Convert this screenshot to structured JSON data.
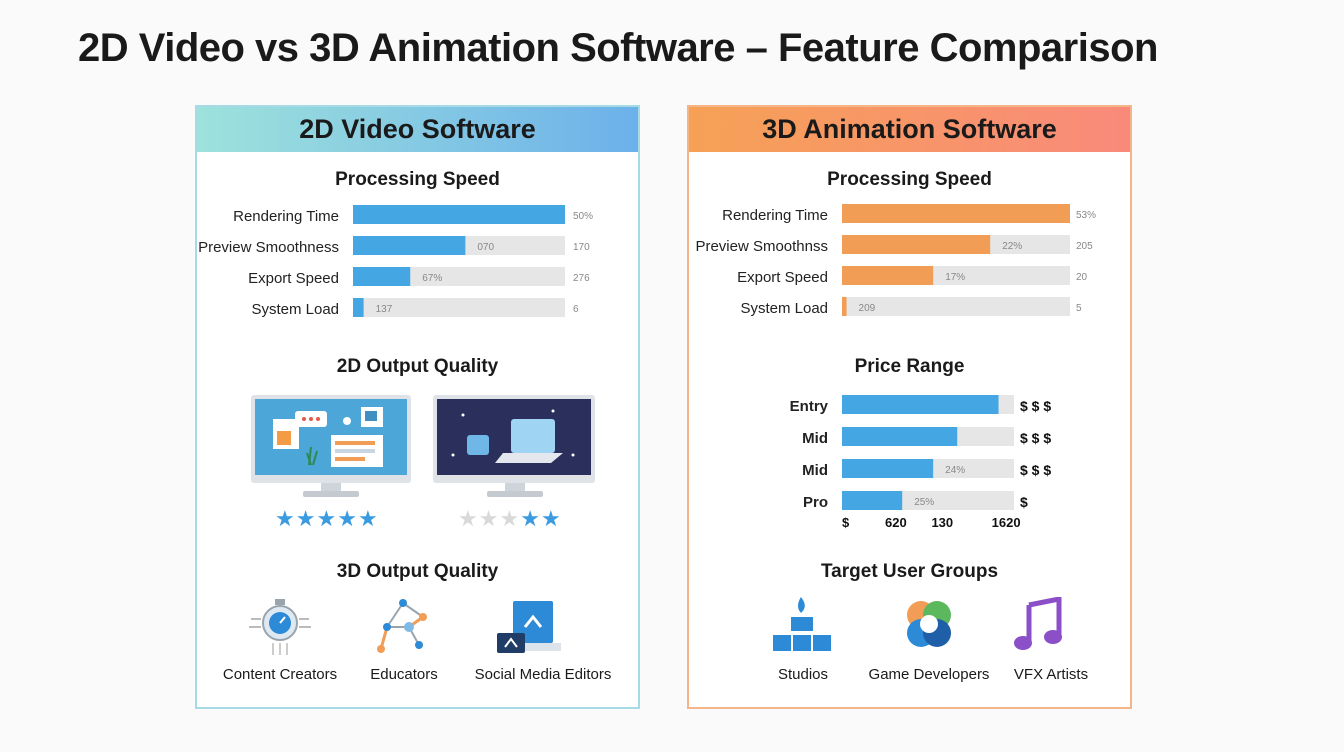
{
  "title": "2D Video vs 3D Animation Software – Feature Comparison",
  "colors": {
    "blue_bar": "#44a6e3",
    "orange_bar": "#f29d55",
    "track": "#e6e6e6",
    "star_on": "#3b9be0",
    "star_off": "#d9d9d9"
  },
  "left": {
    "header": "2D Video Software",
    "speed_title": "Processing Speed",
    "quality2d_title": "2D Output Quality",
    "quality3d_title": "3D Output Quality",
    "ratings": [
      5,
      2
    ],
    "users": [
      {
        "label": "Content Creators",
        "icon": "stopwatch-icon"
      },
      {
        "label": "Educators",
        "icon": "network-icon"
      },
      {
        "label": "Social Media Editors",
        "icon": "media-box-icon"
      }
    ]
  },
  "right": {
    "header": "3D Animation Software",
    "speed_title": "Processing Speed",
    "price_title": "Price Range",
    "groups_title": "Target User Groups",
    "groups": [
      {
        "label": "Studios",
        "icon": "blocks-flame-icon"
      },
      {
        "label": "Game Developers",
        "icon": "swirl-logo-icon"
      },
      {
        "label": "VFX Artists",
        "icon": "music-note-icon"
      }
    ]
  },
  "chart_data": [
    {
      "type": "bar",
      "title": "Processing Speed",
      "categories": [
        "Rendering Time",
        "Preview Smoothness",
        "Export Speed",
        "System Load"
      ],
      "values": [
        100,
        53,
        27,
        5
      ],
      "inner_labels": [
        "",
        "070",
        "67%",
        "137"
      ],
      "end_labels": [
        "50%",
        "170",
        "276",
        "6"
      ]
    },
    {
      "type": "bar",
      "title": "Processing Speed",
      "categories": [
        "Rendering Time",
        "Preview Smoothnss",
        "Export Speed",
        "System Load"
      ],
      "values": [
        100,
        65,
        40,
        2
      ],
      "inner_labels": [
        "",
        "22%",
        "17%",
        "209"
      ],
      "end_labels": [
        "53%",
        "205",
        "20",
        "5"
      ]
    },
    {
      "type": "bar",
      "title": "Price Range",
      "categories": [
        "Entry",
        "Mid",
        "Mid",
        "Pro"
      ],
      "values": [
        91,
        67,
        53,
        35
      ],
      "inner_labels": [
        "",
        "",
        "24%",
        "25%"
      ],
      "end_labels": [
        "$ $ $",
        "$ $ $",
        "$ $ $",
        "$"
      ],
      "x_ticks": [
        "$",
        "620",
        "130",
        "1620"
      ]
    }
  ]
}
